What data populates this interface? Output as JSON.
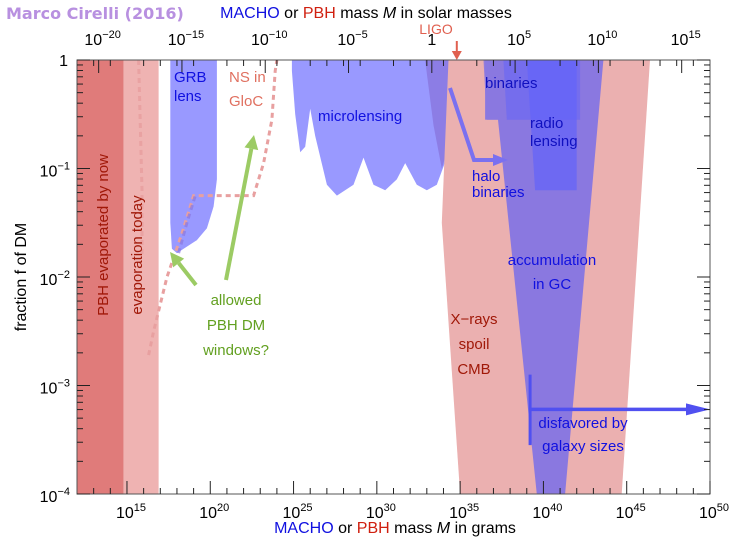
{
  "chart_data": {
    "type": "area",
    "author_credit": "Marco Cirelli (2016)",
    "top_axis_title": {
      "parts": [
        {
          "text": "MACHO",
          "color": "#1010e0"
        },
        {
          "text": " or ",
          "color": "#000000"
        },
        {
          "text": "PBH",
          "color": "#d02010"
        },
        {
          "text": " mass ",
          "color": "#000000"
        },
        {
          "text": "M",
          "color": "#000000",
          "italic": true
        },
        {
          "text": " in solar masses",
          "color": "#000000"
        }
      ]
    },
    "bottom_axis_title": {
      "parts": [
        {
          "text": "MACHO",
          "color": "#1010e0"
        },
        {
          "text": " or ",
          "color": "#000000"
        },
        {
          "text": "PBH",
          "color": "#d02010"
        },
        {
          "text": " mass ",
          "color": "#000000"
        },
        {
          "text": "M",
          "color": "#000000",
          "italic": true
        },
        {
          "text": " in grams",
          "color": "#000000"
        }
      ]
    },
    "ylabel": "fraction f of DM",
    "x_scale": "log10",
    "xlim_log10_grams": [
      12,
      50
    ],
    "ylim_log10": [
      -4,
      0
    ],
    "solar_mass_log10_grams": 33.3,
    "bottom_ticks": [
      {
        "exp": 15,
        "label": "15"
      },
      {
        "exp": 20,
        "label": "20"
      },
      {
        "exp": 25,
        "label": "25"
      },
      {
        "exp": 30,
        "label": "30"
      },
      {
        "exp": 35,
        "label": "35"
      },
      {
        "exp": 40,
        "label": "40"
      },
      {
        "exp": 45,
        "label": "45"
      },
      {
        "exp": 50,
        "label": "50"
      }
    ],
    "top_ticks": [
      {
        "exp": -20,
        "label": "−20"
      },
      {
        "exp": -15,
        "label": "−15"
      },
      {
        "exp": -10,
        "label": "−10"
      },
      {
        "exp": -5,
        "label": "−5"
      },
      {
        "exp": 0,
        "label": ""
      },
      {
        "exp": 5,
        "label": "5"
      },
      {
        "exp": 10,
        "label": "10"
      },
      {
        "exp": 15,
        "label": "15"
      }
    ],
    "y_ticks": [
      {
        "exp": 0,
        "label": ""
      },
      {
        "exp": -1,
        "label": "−1"
      },
      {
        "exp": -2,
        "label": "−2"
      },
      {
        "exp": -3,
        "label": "−3"
      },
      {
        "exp": -4,
        "label": "−4"
      }
    ],
    "y_tick_one_label": "1",
    "top_tick_one_label": "1",
    "colors": {
      "evaporated": "#e07b7a",
      "evaporation_today": "#efb3b2",
      "lensing_blue": "#9999ff",
      "purple": "#8a78e0",
      "xray_pink": "#ebb0b0",
      "radio_blue": "#6464f8",
      "green": "#9ccb64",
      "dashed_pink": "#e8a0a0",
      "arrow_blue": "#5050f0",
      "ligo": "#e06050"
    },
    "regions": [
      {
        "name": "PBH evaporated by now",
        "x_log10_range": [
          12,
          14.8
        ],
        "f_upper": 1
      },
      {
        "name": "evaporation today",
        "x_log10_range": [
          14.8,
          16.9
        ],
        "f_upper": 1
      },
      {
        "name": "GRB lens",
        "x_log10_range": [
          17.6,
          20.3
        ],
        "f_upper_at_min": 0.016
      },
      {
        "name": "microlensing",
        "x_log10_range": [
          24.9,
          35
        ],
        "f_upper_at_min": 0.05
      },
      {
        "name": "X-rays spoil CMB",
        "x_log10_range": [
          34,
          46
        ],
        "f_upper": 1
      },
      {
        "name": "accumulation in GC",
        "x_log10_range": [
          37,
          43.5
        ],
        "f_upper": 1
      },
      {
        "name": "binaries",
        "x_log10_range": [
          37.5,
          42
        ],
        "f_range": [
          0.28,
          1
        ]
      },
      {
        "name": "radio lensing",
        "x_log10_range": [
          39.5,
          42
        ],
        "f_range": [
          0.06,
          1
        ]
      },
      {
        "name": "disfavored by galaxy sizes",
        "x_log10_start": 39.2,
        "f": 0.0006
      }
    ],
    "annotations": [
      {
        "id": "grb",
        "lines": [
          "GRB",
          "lens"
        ],
        "color": "#1010e0"
      },
      {
        "id": "ns",
        "lines": [
          "NS in",
          "GloC"
        ],
        "color": "#e07060"
      },
      {
        "id": "micro",
        "lines": [
          "microlensing"
        ],
        "color": "#1010e0"
      },
      {
        "id": "binaries",
        "lines": [
          "binaries"
        ],
        "color": "#1010c0"
      },
      {
        "id": "radio",
        "lines": [
          "radio",
          "lensing"
        ],
        "color": "#1010c0"
      },
      {
        "id": "halo",
        "lines": [
          "halo",
          "binaries"
        ],
        "color": "#1010e0"
      },
      {
        "id": "accum",
        "lines": [
          "accumulation",
          "in GC"
        ],
        "color": "#1010e0"
      },
      {
        "id": "xray",
        "lines": [
          "X−rays",
          "spoil",
          "CMB"
        ],
        "color": "#a01808"
      },
      {
        "id": "galaxy",
        "lines": [
          "disfavored by",
          "galaxy sizes"
        ],
        "color": "#1010e0"
      },
      {
        "id": "allowed",
        "lines": [
          "allowed",
          "PBH DM",
          "windows?"
        ],
        "color": "#62a020"
      },
      {
        "id": "ligo",
        "lines": [
          "LIGO"
        ],
        "color": "#e06050"
      },
      {
        "id": "evap_now",
        "lines": [
          "PBH evaporated by now"
        ],
        "color": "#a01808"
      },
      {
        "id": "evap_today",
        "lines": [
          "evaporation today"
        ],
        "color": "#a01808"
      }
    ]
  }
}
